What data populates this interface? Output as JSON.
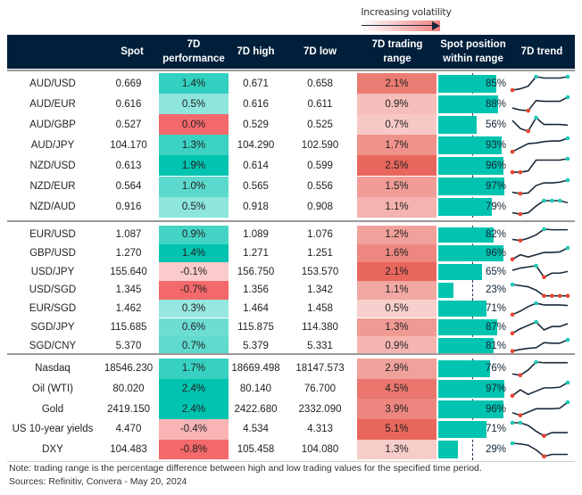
{
  "chart_data": {
    "type": "table",
    "legend": {
      "label": "Increasing volatility"
    },
    "columns": [
      "",
      "Spot",
      "7D performance",
      "7D high",
      "7D low",
      "7D trading range",
      "Spot position within range",
      "7D trend"
    ],
    "colors": {
      "header": "#001f3a",
      "positive": "#00c4b0",
      "negative": "#f4696b",
      "range": "#e8665c",
      "bar": "#00c4b0",
      "trend_line": "#1a2a3a",
      "trend_max": "#1ec8b5",
      "trend_min": "#e8432f"
    },
    "sections": [
      {
        "rows": [
          {
            "name": "AUD/USD",
            "spot": "0.669",
            "perf": "1.4%",
            "high": "0.671",
            "low": "0.658",
            "range": "2.1%",
            "position": "85%",
            "trend": [
              0,
              0.1,
              0.3,
              1,
              0.9,
              0.9,
              0.9,
              1
            ]
          },
          {
            "name": "AUD/EUR",
            "spot": "0.616",
            "perf": "0.5%",
            "high": "0.616",
            "low": "0.611",
            "range": "0.9%",
            "position": "88%",
            "trend": [
              0.2,
              0.05,
              0,
              0.75,
              0.7,
              0.7,
              0.7,
              1
            ]
          },
          {
            "name": "AUD/GBP",
            "spot": "0.527",
            "perf": "0.0%",
            "high": "0.529",
            "low": "0.525",
            "range": "0.7%",
            "position": "56%",
            "trend": [
              0.8,
              0.2,
              0,
              1,
              0.5,
              0.5,
              0.5,
              0.45
            ]
          },
          {
            "name": "AUD/JPY",
            "spot": "104.170",
            "perf": "1.3%",
            "high": "104.290",
            "low": "102.590",
            "range": "1.7%",
            "position": "93%",
            "trend": [
              0,
              0.3,
              0.6,
              0.65,
              0.75,
              0.8,
              0.8,
              1
            ]
          },
          {
            "name": "NZD/USD",
            "spot": "0.613",
            "perf": "1.9%",
            "high": "0.614",
            "low": "0.599",
            "range": "2.5%",
            "position": "96%",
            "trend": [
              0,
              0,
              0.1,
              0.9,
              0.9,
              0.9,
              0.9,
              1
            ]
          },
          {
            "name": "NZD/EUR",
            "spot": "0.564",
            "perf": "1.0%",
            "high": "0.565",
            "low": "0.556",
            "range": "1.5%",
            "position": "97%",
            "trend": [
              0.1,
              0,
              0.05,
              0.6,
              0.8,
              0.8,
              0.85,
              1
            ]
          },
          {
            "name": "NZD/AUD",
            "spot": "0.916",
            "perf": "0.5%",
            "high": "0.918",
            "low": "0.908",
            "range": "1.1%",
            "position": "79%",
            "trend": [
              0.1,
              0,
              0.1,
              0.6,
              1,
              1,
              1,
              0.85
            ]
          }
        ]
      },
      {
        "rows": [
          {
            "name": "EUR/USD",
            "spot": "1.087",
            "perf": "0.9%",
            "high": "1.089",
            "low": "1.076",
            "range": "1.2%",
            "position": "82%",
            "trend": [
              0.1,
              0,
              0.2,
              0.5,
              1,
              0.95,
              0.95,
              0.95
            ]
          },
          {
            "name": "GBP/USD",
            "spot": "1.270",
            "perf": "1.4%",
            "high": "1.271",
            "low": "1.251",
            "range": "1.6%",
            "position": "96%",
            "trend": [
              0,
              0.4,
              0.2,
              0.4,
              0.6,
              0.6,
              0.65,
              1
            ]
          },
          {
            "name": "USD/JPY",
            "spot": "155.640",
            "perf": "-0.1%",
            "high": "156.750",
            "low": "153.570",
            "range": "2.1%",
            "position": "65%",
            "trend": [
              0.6,
              0.8,
              0.9,
              1,
              0,
              0.35,
              0.35,
              0.5
            ]
          },
          {
            "name": "USD/SGD",
            "spot": "1.345",
            "perf": "-0.7%",
            "high": "1.356",
            "low": "1.342",
            "range": "1.1%",
            "position": "23%",
            "trend": [
              1,
              0.9,
              0.8,
              0.5,
              0,
              0,
              0,
              0
            ]
          },
          {
            "name": "EUR/SGD",
            "spot": "1.462",
            "perf": "0.3%",
            "high": "1.464",
            "low": "1.458",
            "range": "0.5%",
            "position": "71%",
            "trend": [
              0,
              0.3,
              0.7,
              1,
              0.85,
              0.85,
              0.85,
              0.8
            ]
          },
          {
            "name": "SGD/JPY",
            "spot": "115.685",
            "perf": "0.6%",
            "high": "115.875",
            "low": "114.380",
            "range": "1.3%",
            "position": "87%",
            "trend": [
              0,
              0.4,
              0.7,
              1,
              0.3,
              0.6,
              0.6,
              0.85
            ]
          },
          {
            "name": "SGD/CNY",
            "spot": "5.370",
            "perf": "0.7%",
            "high": "5.379",
            "low": "5.331",
            "range": "0.9%",
            "position": "81%",
            "trend": [
              0,
              0.15,
              0.25,
              0.3,
              0.75,
              0.7,
              0.7,
              1
            ]
          }
        ]
      },
      {
        "rows": [
          {
            "name": "Nasdaq",
            "spot": "18546.230",
            "perf": "1.7%",
            "high": "18669.498",
            "low": "18147.573",
            "range": "2.9%",
            "position": "76%",
            "trend": [
              0.1,
              0,
              0.4,
              1,
              0.95,
              0.95,
              0.95,
              0.95
            ]
          },
          {
            "name": "Oil (WTI)",
            "spot": "80.020",
            "perf": "2.4%",
            "high": "80.140",
            "low": "76.700",
            "range": "4.5%",
            "position": "97%",
            "trend": [
              0,
              0.45,
              0.1,
              0.35,
              0.6,
              0.6,
              0.65,
              1
            ]
          },
          {
            "name": "Gold",
            "spot": "2419.150",
            "perf": "2.4%",
            "high": "2422.680",
            "low": "2332.090",
            "range": "3.9%",
            "position": "96%",
            "trend": [
              0.2,
              0,
              0.25,
              0.5,
              0.5,
              0.5,
              0.55,
              1
            ]
          },
          {
            "name": "US 10-year yields",
            "spot": "4.470",
            "perf": "-0.4%",
            "high": "4.534",
            "low": "4.313",
            "range": "5.1%",
            "position": "71%",
            "trend": [
              1,
              1,
              0.8,
              0.35,
              0,
              0.25,
              0.25,
              0.25
            ]
          },
          {
            "name": "DXY",
            "spot": "104.483",
            "perf": "-0.8%",
            "high": "105.458",
            "low": "104.080",
            "range": "1.3%",
            "position": "29%",
            "trend": [
              1,
              0.95,
              0.85,
              0.5,
              0,
              0.15,
              0.15,
              0.15
            ]
          }
        ]
      }
    ],
    "note": "Note: trading range is the percentage difference between high and low trading values for the specified time period.",
    "source": "Sources: Refinitiv, Convera - May 20, 2024"
  }
}
